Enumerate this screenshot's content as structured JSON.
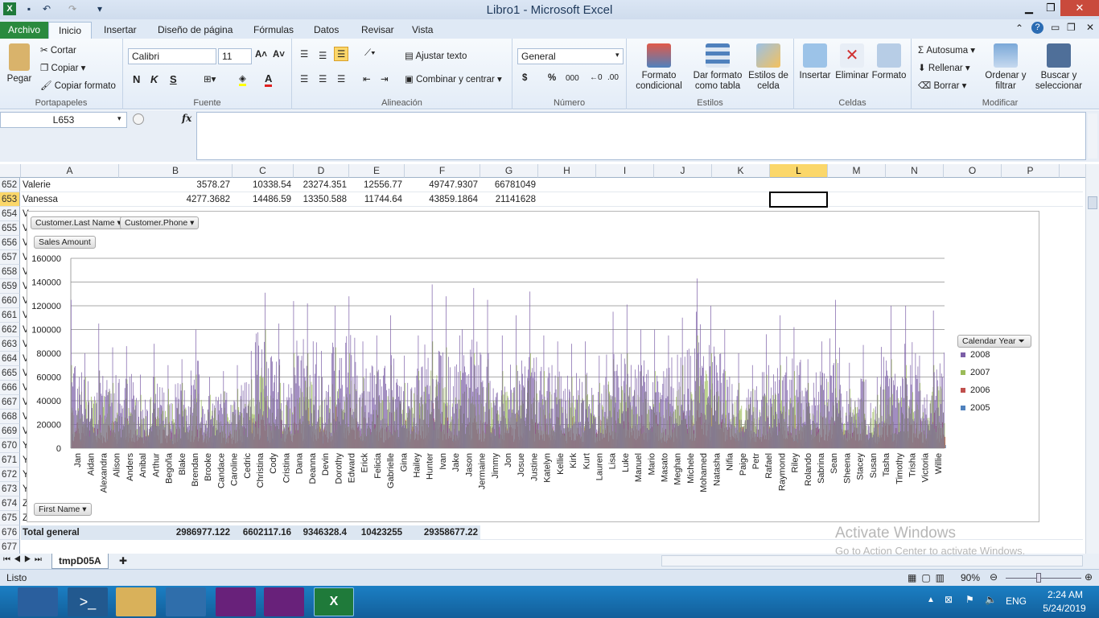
{
  "window": {
    "title": "Libro1 - Microsoft Excel"
  },
  "tabs": [
    "Archivo",
    "Inicio",
    "Insertar",
    "Diseño de página",
    "Fórmulas",
    "Datos",
    "Revisar",
    "Vista"
  ],
  "ribbon": {
    "clipboard": {
      "paste": "Pegar",
      "cut": "Cortar",
      "copy": "Copiar",
      "format_painter": "Copiar formato",
      "label": "Portapapeles"
    },
    "font": {
      "name": "Calibri",
      "size": "11",
      "bold": "N",
      "italic": "K",
      "underline": "S",
      "label": "Fuente"
    },
    "alignment": {
      "wrap": "Ajustar texto",
      "merge": "Combinar y centrar",
      "label": "Alineación"
    },
    "number": {
      "format": "General",
      "currency": "$",
      "percent": "%",
      "thousands": "000",
      "label": "Número"
    },
    "styles": {
      "cond": "Formato condicional",
      "table": "Dar formato como tabla",
      "cell": "Estilos de celda",
      "label": "Estilos"
    },
    "cells": {
      "insert": "Insertar",
      "delete": "Eliminar",
      "format": "Formato",
      "label": "Celdas"
    },
    "editing": {
      "autosum": "Autosuma",
      "fill": "Rellenar",
      "clear": "Borrar",
      "sort": "Ordenar y filtrar",
      "find": "Buscar y seleccionar",
      "label": "Modificar"
    }
  },
  "formula_bar": {
    "name_box": "L653",
    "fx": "fx",
    "content": ""
  },
  "columns": [
    "A",
    "B",
    "C",
    "D",
    "E",
    "F",
    "G",
    "H",
    "I",
    "J",
    "K",
    "L",
    "M",
    "N",
    "O",
    "P"
  ],
  "rows": [
    {
      "num": "652",
      "a": "Valerie",
      "b": "3578.27",
      "c": "10338.54",
      "d": "23274.351",
      "e": "12556.77",
      "f": "49747.9307",
      "g": "66781049"
    },
    {
      "num": "653",
      "a": "Vanessa",
      "b": "4277.3682",
      "c": "14486.59",
      "d": "13350.588",
      "e": "11744.64",
      "f": "43859.1864",
      "g": "21141628"
    }
  ],
  "hidden_rows": [
    "654",
    "655",
    "656",
    "657",
    "658",
    "659",
    "660",
    "661",
    "662",
    "663",
    "664",
    "665",
    "666",
    "667",
    "668",
    "669",
    "670",
    "671",
    "672",
    "673",
    "674",
    "675"
  ],
  "row_stubs": [
    "V",
    "V",
    "V",
    "V",
    "V",
    "V",
    "V",
    "V",
    "V",
    "V",
    "V",
    "V",
    "V",
    "V",
    "V",
    "V",
    "Y",
    "Y",
    "Y",
    "Y",
    "Z",
    "Z"
  ],
  "total_row": {
    "num": "676",
    "label": "Total general",
    "b": "2986977.122",
    "c": "6602117.16",
    "d": "9346328.4",
    "e": "10423255",
    "f": "29358677.22"
  },
  "last_row": "677",
  "chart": {
    "filter_buttons": [
      "Customer.Last Name",
      "Customer.Phone"
    ],
    "value_button": "Sales Amount",
    "axis_button": "First Name",
    "legend_title": "Calendar Year",
    "legend": [
      {
        "name": "2008",
        "color": "#7b5ea7"
      },
      {
        "name": "2007",
        "color": "#9bbb59"
      },
      {
        "name": "2006",
        "color": "#c0504d"
      },
      {
        "name": "2005",
        "color": "#4f81bd"
      }
    ]
  },
  "chart_data": {
    "type": "bar",
    "ylim": [
      0,
      160000
    ],
    "yticks": [
      "160000",
      "140000",
      "120000",
      "100000",
      "80000",
      "60000",
      "40000",
      "20000",
      "0"
    ],
    "categories": [
      "Jan",
      "Aidan",
      "Alexandra",
      "Alison",
      "Anders",
      "Anibal",
      "Arthur",
      "Begoña",
      "Blake",
      "Brendan",
      "Brooke",
      "Candace",
      "Caroline",
      "Cedric",
      "Christina",
      "Cody",
      "Cristina",
      "Dana",
      "Deanna",
      "Devin",
      "Dorothy",
      "Edward",
      "Erick",
      "Felicia",
      "Gabrielle",
      "Gina",
      "Hailey",
      "Hunter",
      "Ivan",
      "Jake",
      "Jason",
      "Jermaine",
      "Jimmy",
      "Jon",
      "Josue",
      "Justine",
      "Katelyn",
      "Kellie",
      "Kirk",
      "Kurt",
      "Lauren",
      "Lisa",
      "Luke",
      "Manuel",
      "Mario",
      "Masato",
      "Meghan",
      "Michele",
      "Mohamed",
      "Natasha",
      "Nifia",
      "Paige",
      "Petr",
      "Rafael",
      "Raymond",
      "Riley",
      "Rolando",
      "Sabrina",
      "Sean",
      "Sheena",
      "Stacey",
      "Susan",
      "Tasha",
      "Timothy",
      "Trisha",
      "Victoria",
      "Willie"
    ],
    "series": [
      {
        "name": "2008",
        "peak_values": [
          125000,
          80000,
          105000,
          85000,
          86000,
          62000,
          88000,
          70000,
          75000,
          100000,
          60000,
          65000,
          70000,
          82000,
          131000,
          105000,
          75000,
          124000,
          122000,
          82000,
          120000,
          128000,
          90000,
          95000,
          112000,
          78000,
          95000,
          138000,
          128000,
          95000,
          135000,
          125000,
          80000,
          95000,
          112000,
          132000,
          95000,
          90000,
          88000,
          90000,
          78000,
          115000,
          121000,
          100000,
          100000,
          95000,
          110000,
          115000,
          143000,
          120000,
          100000,
          80000,
          70000,
          96000,
          112000,
          102000,
          75000,
          90000,
          125000,
          72000,
          87000,
          60000,
          120000,
          88000,
          120000,
          78000,
          116000
        ]
      },
      {
        "name": "2007",
        "peak_values": [
          70000,
          60000,
          65000,
          55000,
          58000,
          45000,
          60000,
          50000,
          55000,
          62000,
          45000,
          48000,
          50000,
          58000,
          100000,
          70000,
          55000,
          80000,
          80000,
          60000,
          85000,
          80000,
          60000,
          65000,
          70000,
          55000,
          65000,
          90000,
          85000,
          65000,
          80000,
          75000,
          55000,
          65000,
          70000,
          80000,
          65000,
          60000,
          60000,
          62000,
          55000,
          75000,
          80000,
          65000,
          65000,
          62000,
          70000,
          75000,
          95000,
          80000,
          65000,
          55000,
          50000,
          62000,
          70000,
          65000,
          55000,
          60000,
          75000,
          50000,
          58000,
          45000,
          75000,
          60000,
          70000,
          55000,
          70000
        ]
      },
      {
        "name": "2006",
        "peak_values": [
          30000,
          25000,
          28000,
          22000,
          25000,
          20000,
          26000,
          22000,
          24000,
          27000,
          20000,
          21000,
          22000,
          25000,
          40000,
          30000,
          24000,
          35000,
          34000,
          26000,
          35000,
          34000,
          26000,
          28000,
          30000,
          24000,
          28000,
          38000,
          36000,
          28000,
          35000,
          32000,
          24000,
          28000,
          30000,
          34000,
          28000,
          26000,
          26000,
          27000,
          24000,
          32000,
          34000,
          28000,
          28000,
          27000,
          30000,
          32000,
          40000,
          34000,
          28000,
          24000,
          22000,
          27000,
          30000,
          28000,
          24000,
          26000,
          32000,
          22000,
          25000,
          20000,
          32000,
          26000,
          30000,
          24000,
          30000
        ]
      },
      {
        "name": "2005",
        "peak_values": [
          12000,
          10000,
          11000,
          9000,
          10000,
          8000,
          10000,
          9000,
          9500,
          10500,
          8000,
          8500,
          9000,
          10000,
          15000,
          12000,
          9500,
          13000,
          13000,
          10000,
          13500,
          13000,
          10000,
          11000,
          12000,
          9500,
          11000,
          15000,
          14000,
          11000,
          13500,
          12500,
          9500,
          11000,
          12000,
          13000,
          11000,
          10000,
          10000,
          10500,
          9500,
          12500,
          13000,
          11000,
          11000,
          10500,
          12000,
          12500,
          15000,
          13000,
          11000,
          9500,
          8500,
          10500,
          12000,
          11000,
          9500,
          10000,
          12500,
          8500,
          10000,
          8000,
          12500,
          10000,
          12000,
          9500,
          12000
        ]
      }
    ]
  },
  "sheet_tab": "tmpD05A",
  "status": {
    "ready": "Listo",
    "zoom": "90%"
  },
  "watermark": {
    "title": "Activate Windows",
    "sub": "Go to Action Center to activate Windows."
  },
  "taskbar": {
    "lang": "ENG",
    "time": "2:24 AM",
    "date": "5/24/2019"
  }
}
